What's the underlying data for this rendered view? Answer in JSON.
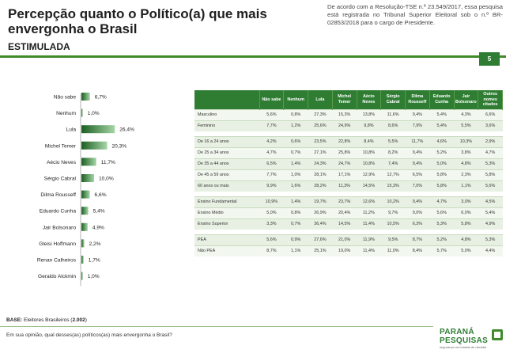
{
  "header": {
    "title": "Percepção quanto o Político(a) que mais envergonha o Brasil",
    "subtitle": "ESTIMULADA",
    "legal_note": "De acordo com a Resolução-TSE n.º 23.549/2017, essa pesquisa está registrada no Tribunal Superior Eleitoral sob o n.º BR-02853/2018 para o cargo de Presidente.",
    "page_number": "5"
  },
  "colors": {
    "accent": "#2e7d32",
    "bar_dark": "#1b5e20",
    "bar_light": "#a5d6a7"
  },
  "chart_data": {
    "type": "bar",
    "orientation": "horizontal",
    "categories": [
      "Não sabe",
      "Nenhum",
      "Lula",
      "Michel Temer",
      "Aécio Neves",
      "Sérgio Cabral",
      "Dilma Rousseff",
      "Eduardo Cunha",
      "Jair Bolsonaro",
      "Gleisi Hoffmann",
      "Renan Calheiros",
      "Geraldo Alckmin"
    ],
    "values": [
      6.7,
      1.0,
      26.4,
      20.3,
      11.7,
      10.0,
      6.6,
      5.4,
      4.9,
      2.2,
      1.7,
      1.0
    ],
    "labels": [
      "6,7%",
      "1,0%",
      "26,4%",
      "20,3%",
      "11,7%",
      "10,0%",
      "6,6%",
      "5,4%",
      "4,9%",
      "2,2%",
      "1,7%",
      "1,0%"
    ],
    "xlim": [
      0,
      30
    ],
    "title": "",
    "xlabel": "",
    "ylabel": ""
  },
  "table": {
    "columns": [
      "Não sabe",
      "Nenhum",
      "Lula",
      "Michel Temer",
      "Aécio Neves",
      "Sérgio Cabral",
      "Dilma Rousseff",
      "Eduardo Cunha",
      "Jair Bolsonaro",
      "Outros nomes citados"
    ],
    "groups": [
      {
        "rows": [
          {
            "label": "Masculino",
            "values": [
              "5,6%",
              "0,8%",
              "27,3%",
              "15,3%",
              "13,8%",
              "11,6%",
              "9,4%",
              "5,4%",
              "4,3%",
              "6,6%"
            ]
          },
          {
            "label": "Feminino",
            "values": [
              "7,7%",
              "1,2%",
              "25,6%",
              "24,9%",
              "9,8%",
              "8,6%",
              "7,9%",
              "5,4%",
              "5,5%",
              "3,6%"
            ]
          }
        ]
      },
      {
        "rows": [
          {
            "label": "De 16 a 24 anos",
            "values": [
              "4,2%",
              "0,6%",
              "23,5%",
              "22,8%",
              "8,4%",
              "5,5%",
              "11,7%",
              "4,6%",
              "10,3%",
              "2,9%"
            ]
          },
          {
            "label": "De 25 a 34 anos",
            "values": [
              "4,7%",
              "0,7%",
              "27,1%",
              "25,8%",
              "10,8%",
              "8,2%",
              "9,4%",
              "5,2%",
              "3,8%",
              "4,7%"
            ]
          },
          {
            "label": "De 35 a 44 anos",
            "values": [
              "6,5%",
              "1,4%",
              "24,3%",
              "24,7%",
              "10,8%",
              "7,4%",
              "9,4%",
              "5,0%",
              "4,8%",
              "5,3%"
            ]
          },
          {
            "label": "De 45 a 59 anos",
            "values": [
              "7,7%",
              "1,0%",
              "28,1%",
              "17,1%",
              "12,9%",
              "12,7%",
              "6,5%",
              "5,8%",
              "2,3%",
              "5,8%"
            ]
          },
          {
            "label": "60 anos ou mais",
            "values": [
              "9,9%",
              "1,6%",
              "28,2%",
              "11,3%",
              "14,5%",
              "15,3%",
              "7,0%",
              "5,8%",
              "1,1%",
              "5,6%"
            ]
          }
        ]
      },
      {
        "rows": [
          {
            "label": "Ensino Fundamental",
            "values": [
              "10,9%",
              "1,4%",
              "19,7%",
              "23,7%",
              "12,6%",
              "10,2%",
              "9,4%",
              "4,7%",
              "3,0%",
              "4,5%"
            ]
          },
          {
            "label": "Ensino Médio",
            "values": [
              "5,0%",
              "0,8%",
              "26,9%",
              "20,4%",
              "11,2%",
              "9,7%",
              "9,0%",
              "5,6%",
              "6,0%",
              "5,4%"
            ]
          },
          {
            "label": "Ensino Superior",
            "values": [
              "3,3%",
              "0,7%",
              "36,4%",
              "14,5%",
              "11,4%",
              "10,5%",
              "6,3%",
              "5,3%",
              "5,8%",
              "4,9%"
            ]
          }
        ]
      },
      {
        "rows": [
          {
            "label": "PEA",
            "values": [
              "5,6%",
              "0,9%",
              "27,6%",
              "21,0%",
              "11,9%",
              "9,5%",
              "8,7%",
              "5,2%",
              "4,8%",
              "5,3%"
            ]
          },
          {
            "label": "Não PEA",
            "values": [
              "8,7%",
              "1,1%",
              "25,1%",
              "19,0%",
              "11,4%",
              "11,0%",
              "8,4%",
              "5,7%",
              "5,0%",
              "4,4%"
            ]
          }
        ]
      }
    ]
  },
  "footer": {
    "base_label": "BASE:",
    "base_text": " Eleitores Brasileiros (",
    "base_value": "2.002",
    "base_close": ")",
    "question": "Em sua opinião, qual desses(as) políticos(as) mais envergonha o Brasil?"
  },
  "logo": {
    "line1": "PARANÁ",
    "line2": "PESQUISAS",
    "tagline": "segurança na tomada de decisão"
  }
}
